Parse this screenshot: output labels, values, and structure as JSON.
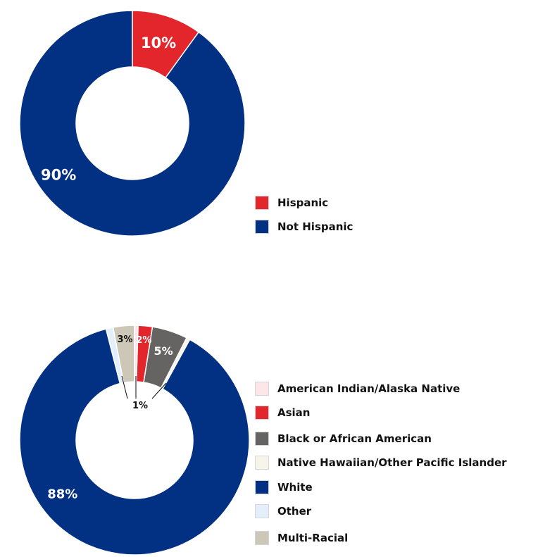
{
  "chart_data": [
    {
      "type": "pie",
      "title": "",
      "categories": [
        "Hispanic",
        "Not Hispanic"
      ],
      "values": [
        10,
        90
      ],
      "value_labels": [
        "10%",
        "90%"
      ],
      "colors": [
        "#e2262b",
        "#023184"
      ],
      "label_colors": [
        "#ffffff",
        "#ffffff"
      ],
      "legend": "right",
      "donut": true
    },
    {
      "type": "pie",
      "title": "",
      "categories": [
        "American Indian/Alaska Native",
        "Asian",
        "Black or African American",
        "Native Hawaiian/Other Pacific Islander",
        "White",
        "Other",
        "Multi-Racial"
      ],
      "values": [
        0.5,
        2,
        5,
        0.5,
        88,
        1,
        3
      ],
      "value_labels": [
        "",
        "2%",
        "5%",
        "",
        "88%",
        "",
        "3%"
      ],
      "colors": [
        "#fce6e8",
        "#e2262b",
        "#656462",
        "#f7f4e9",
        "#023184",
        "#e3f0fc",
        "#cdc7b8"
      ],
      "label_colors": [
        "#111111",
        "#ffffff",
        "#ffffff",
        "#111111",
        "#ffffff",
        "#111111",
        "#111111"
      ],
      "extra_label": "1%",
      "legend": "right",
      "donut": true
    }
  ]
}
